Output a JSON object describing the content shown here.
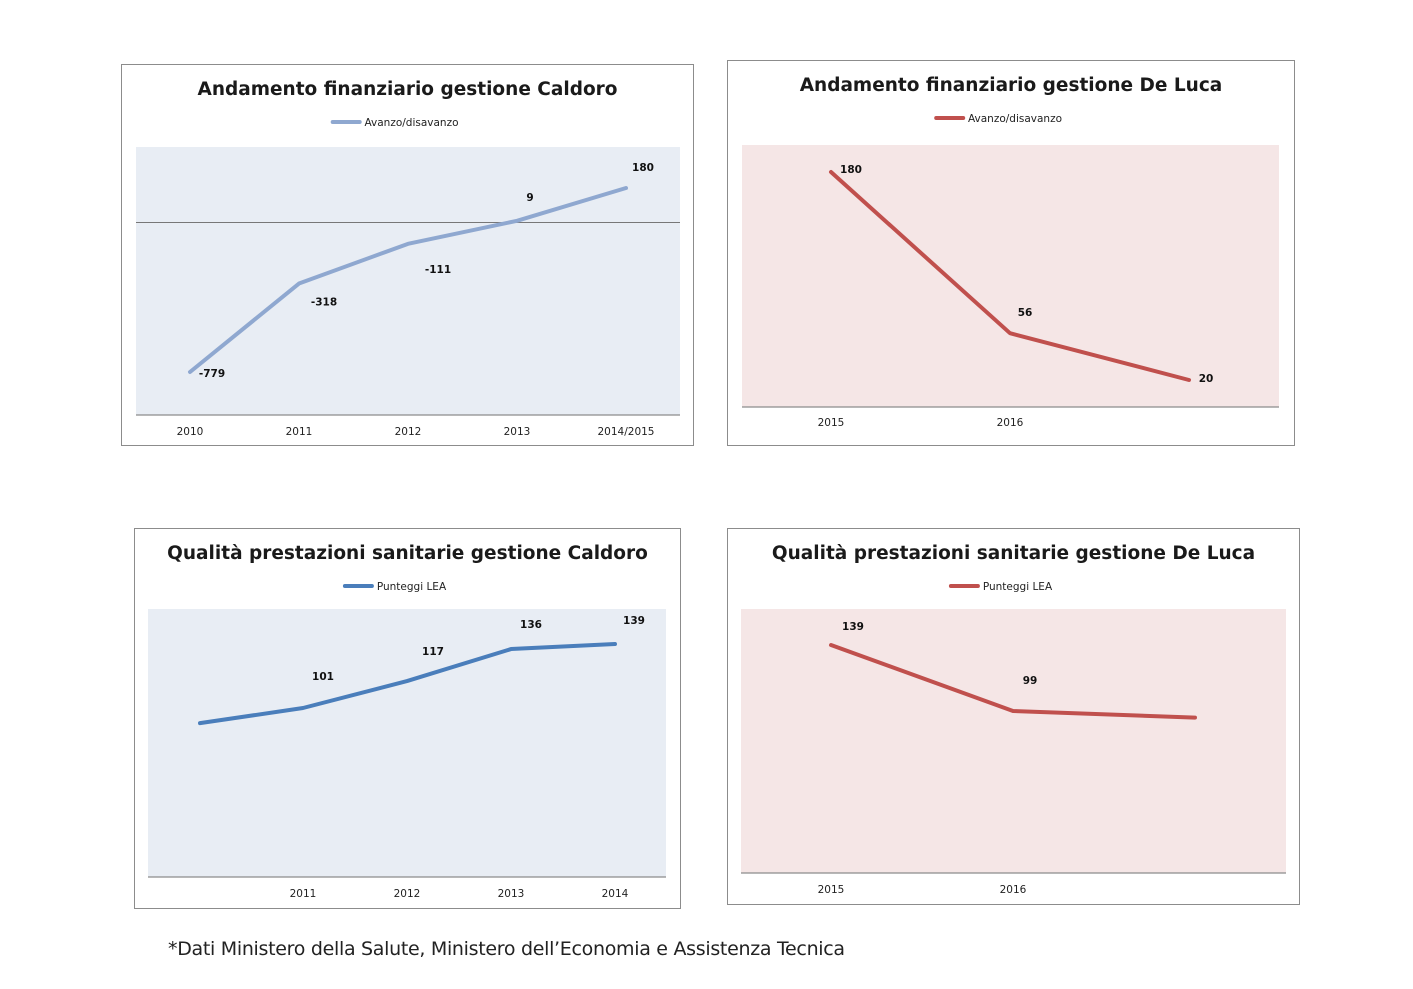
{
  "footnote": "*Dati Ministero della Salute, Ministero dell’Economia e Assistenza Tecnica",
  "chart_data": [
    {
      "type": "line",
      "title": "Andamento finanziario gestione Caldoro",
      "categories": [
        "2010",
        "2011",
        "2012",
        "2013",
        "2014/2015"
      ],
      "series": [
        {
          "name": "Avanzo/disavanzo",
          "values": [
            -779,
            -318,
            -111,
            9,
            180
          ]
        }
      ],
      "data_labels": [
        "-779",
        "-318",
        "-111",
        "9",
        "180"
      ],
      "zero_line": true,
      "line_color": "#8fa8d0",
      "plot_background": "#e8edf4",
      "legend_position": "top"
    },
    {
      "type": "line",
      "title": "Andamento finanziario gestione De Luca",
      "categories": [
        "2015",
        "2016",
        ""
      ],
      "series": [
        {
          "name": "Avanzo/disavanzo",
          "values": [
            180,
            56,
            20
          ]
        }
      ],
      "data_labels": [
        "180",
        "56",
        "20"
      ],
      "line_color": "#c0504d",
      "plot_background": "#f5e6e6",
      "legend_position": "top"
    },
    {
      "type": "line",
      "title": "Qualità prestazioni sanitarie gestione Caldoro",
      "categories": [
        "",
        "2011",
        "2012",
        "2013",
        "2014"
      ],
      "series": [
        {
          "name": "Punteggi LEA",
          "values": [
            92,
            101,
            117,
            136,
            139
          ]
        }
      ],
      "data_labels": [
        "",
        "101",
        "117",
        "136",
        "139"
      ],
      "line_color": "#4a7ebb",
      "plot_background": "#e8edf4",
      "legend_position": "top"
    },
    {
      "type": "line",
      "title": "Qualità prestazioni sanitarie gestione De Luca",
      "categories": [
        "2015",
        "2016",
        ""
      ],
      "series": [
        {
          "name": "Punteggi LEA",
          "values": [
            139,
            99,
            95
          ]
        }
      ],
      "data_labels": [
        "139",
        "99",
        ""
      ],
      "line_color": "#c0504d",
      "plot_background": "#f5e6e6",
      "legend_position": "top"
    }
  ]
}
